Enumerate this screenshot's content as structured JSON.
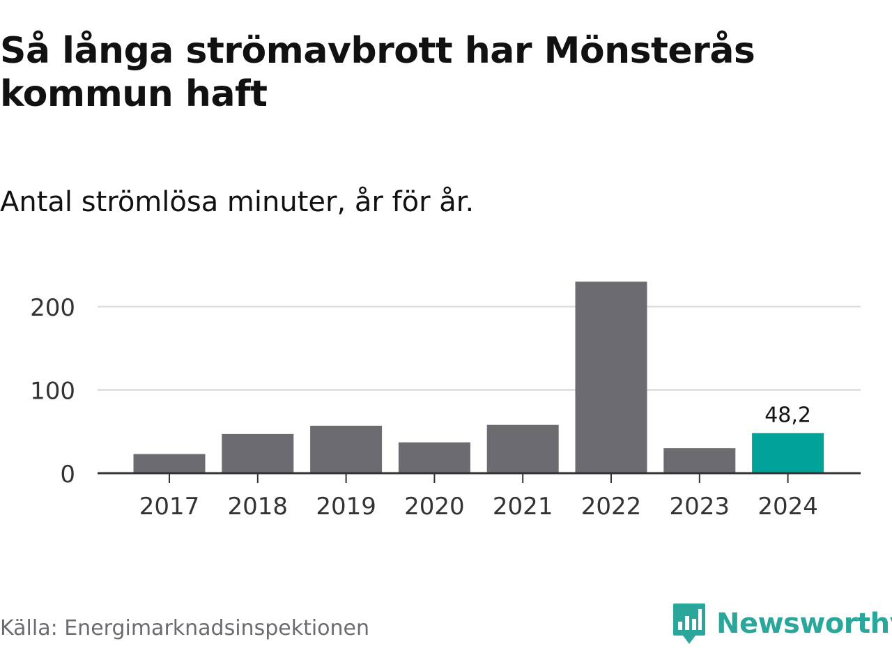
{
  "header": {
    "title": "Så långa strömavbrott har Mönsterås kommun haft",
    "subtitle": "Antal strömlösa minuter, år för år."
  },
  "chart_data": {
    "type": "bar",
    "title": "Så långa strömavbrott har Mönsterås kommun haft",
    "subtitle": "Antal strömlösa minuter, år för år.",
    "categories": [
      "2017",
      "2018",
      "2019",
      "2020",
      "2021",
      "2022",
      "2023",
      "2024"
    ],
    "values": [
      23,
      47,
      57,
      37,
      58,
      230,
      30,
      48.2
    ],
    "highlight_index": 7,
    "data_label": "48,2",
    "yticks": [
      0,
      100,
      200
    ],
    "ytick_labels": [
      "0",
      "100",
      "200"
    ],
    "ylim": [
      0,
      230
    ],
    "xlabel": "",
    "ylabel": "",
    "grid": true,
    "colors": {
      "bar": "#6c6b70",
      "highlight": "#00a29a",
      "grid": "#dcdcdc",
      "axis": "#333333"
    }
  },
  "footer": {
    "source": "Källa: Energimarknadsinspektionen",
    "brand": "Newsworthy",
    "brand_icon": "newsworthy-logo-icon",
    "brand_color": "#2aa69a"
  }
}
